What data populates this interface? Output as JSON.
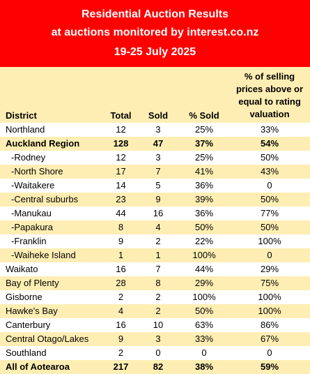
{
  "title": {
    "line1": "Residential Auction Results",
    "line2": "at auctions monitored by interest.co.nz",
    "line3": "19-25 July 2025"
  },
  "columns": {
    "district": "District",
    "total": "Total",
    "sold": "Sold",
    "pct_sold": "% Sold",
    "valuation_line1": "% of selling",
    "valuation_line2": "prices above or",
    "valuation_line3": "equal to rating",
    "valuation_line4": "valuation"
  },
  "rows": [
    {
      "district": "Northland",
      "total": "12",
      "sold": "3",
      "pct_sold": "25%",
      "valuation": "33%"
    },
    {
      "district": "Auckland Region",
      "total": "128",
      "sold": "47",
      "pct_sold": "37%",
      "valuation": "54%"
    },
    {
      "district": "-Rodney",
      "total": "12",
      "sold": "3",
      "pct_sold": "25%",
      "valuation": "50%"
    },
    {
      "district": "-North Shore",
      "total": "17",
      "sold": "7",
      "pct_sold": "41%",
      "valuation": "43%"
    },
    {
      "district": "-Waitakere",
      "total": "14",
      "sold": "5",
      "pct_sold": "36%",
      "valuation": "0"
    },
    {
      "district": "-Central suburbs",
      "total": "23",
      "sold": "9",
      "pct_sold": "39%",
      "valuation": "50%"
    },
    {
      "district": "-Manukau",
      "total": "44",
      "sold": "16",
      "pct_sold": "36%",
      "valuation": "77%"
    },
    {
      "district": "-Papakura",
      "total": "8",
      "sold": "4",
      "pct_sold": "50%",
      "valuation": "50%"
    },
    {
      "district": "-Franklin",
      "total": "9",
      "sold": "2",
      "pct_sold": "22%",
      "valuation": "100%"
    },
    {
      "district": "-Waiheke Island",
      "total": "1",
      "sold": "1",
      "pct_sold": "100%",
      "valuation": "0"
    },
    {
      "district": "Waikato",
      "total": "16",
      "sold": "7",
      "pct_sold": "44%",
      "valuation": "29%"
    },
    {
      "district": "Bay of Plenty",
      "total": "28",
      "sold": "8",
      "pct_sold": "29%",
      "valuation": "75%"
    },
    {
      "district": "Gisborne",
      "total": "2",
      "sold": "2",
      "pct_sold": "100%",
      "valuation": "100%"
    },
    {
      "district": "Hawke's Bay",
      "total": "4",
      "sold": "2",
      "pct_sold": "50%",
      "valuation": "100%"
    },
    {
      "district": "Canterbury",
      "total": "16",
      "sold": "10",
      "pct_sold": "63%",
      "valuation": "86%"
    },
    {
      "district": "Central Otago/Lakes",
      "total": "9",
      "sold": "3",
      "pct_sold": "33%",
      "valuation": "67%"
    },
    {
      "district": "Southland",
      "total": "2",
      "sold": "0",
      "pct_sold": "0",
      "valuation": "0"
    },
    {
      "district": "All of Aotearoa",
      "total": "217",
      "sold": "82",
      "pct_sold": "38%",
      "valuation": "59%"
    }
  ]
}
